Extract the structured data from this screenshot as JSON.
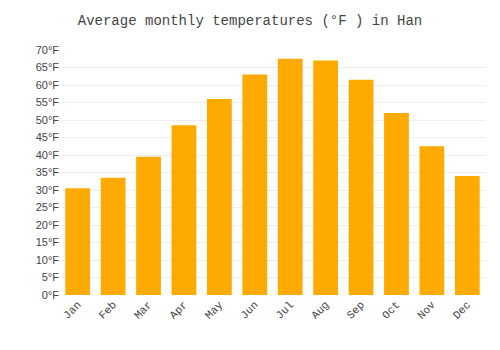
{
  "chart_data": {
    "type": "bar",
    "title": "Average monthly temperatures (°F ) in Han",
    "categories": [
      "Jan",
      "Feb",
      "Mar",
      "Apr",
      "May",
      "Jun",
      "Jul",
      "Aug",
      "Sep",
      "Oct",
      "Nov",
      "Dec"
    ],
    "values": [
      30.5,
      33.5,
      39.5,
      48.5,
      56,
      63,
      67.5,
      67,
      61.5,
      52,
      42.5,
      34
    ],
    "color": "#FFAA00",
    "ylim": [
      0,
      70
    ],
    "yticks": [
      {
        "value": 0,
        "label": "0°F"
      },
      {
        "value": 5,
        "label": "5°F"
      },
      {
        "value": 10,
        "label": "10°F"
      },
      {
        "value": 15,
        "label": "15°F"
      },
      {
        "value": 20,
        "label": "20°F"
      },
      {
        "value": 25,
        "label": "25°F"
      },
      {
        "value": 30,
        "label": "30°F"
      },
      {
        "value": 35,
        "label": "35°F"
      },
      {
        "value": 40,
        "label": "40°F"
      },
      {
        "value": 45,
        "label": "45°F"
      },
      {
        "value": 50,
        "label": "50°F"
      },
      {
        "value": 55,
        "label": "55°F"
      },
      {
        "value": 60,
        "label": "60°F"
      },
      {
        "value": 65,
        "label": "65°F"
      },
      {
        "value": 70,
        "label": "70°F"
      }
    ],
    "grid": true
  }
}
